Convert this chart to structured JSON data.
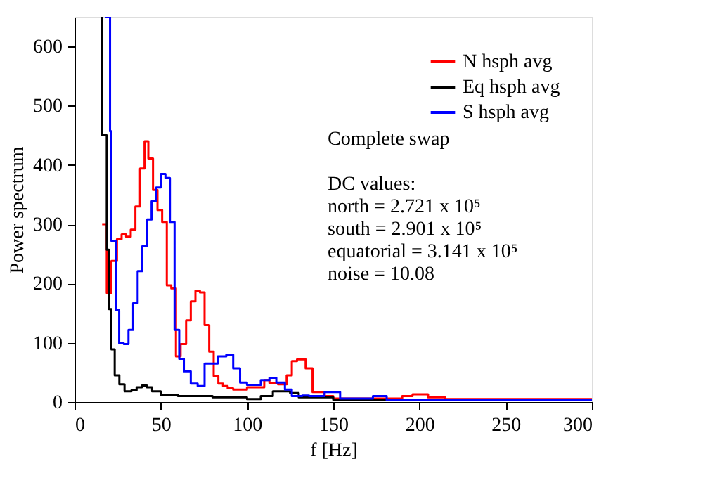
{
  "chart_data": {
    "type": "step",
    "xlabel": "f [Hz]",
    "ylabel": "Power spectrum",
    "xlim": [
      0,
      300
    ],
    "ylim": [
      0,
      650
    ],
    "xticks": [
      0,
      50,
      100,
      150,
      200,
      250,
      300
    ],
    "yticks": [
      0,
      100,
      200,
      300,
      400,
      500,
      600
    ],
    "grid": false,
    "legend": "top right",
    "line_style": "solid",
    "marker": "none",
    "annotations": [
      "Complete swap",
      "DC values:",
      "north = 2.721 x 10⁵",
      "south = 2.901 x 10⁵",
      "equatorial = 3.141 x 10⁵",
      "noise = 10.08"
    ],
    "series": [
      {
        "name": "N hsph avg",
        "color": "#ff0000",
        "x": [
          16.0,
          18.7,
          21.4,
          24.6,
          27.3,
          29.9,
          32.6,
          35.3,
          38.0,
          40.6,
          42.8,
          45.5,
          48.1,
          50.8,
          53.5,
          56.1,
          58.8,
          61.5,
          64.7,
          67.4,
          70.1,
          72.7,
          75.4,
          78.1,
          80.7,
          83.4,
          86.1,
          88.8,
          92,
          100,
          110,
          113,
          118,
          123,
          126,
          129,
          134,
          138,
          145,
          150,
          190,
          196,
          205,
          215,
          300
        ],
        "values": [
          300,
          184,
          238,
          275,
          283,
          279,
          291,
          330,
          394,
          440,
          411,
          358,
          324,
          304,
          197,
          192,
          77,
          98,
          138,
          170,
          188,
          185,
          130,
          85,
          44,
          31,
          27,
          23,
          21,
          25,
          37,
          32,
          30,
          45,
          69,
          72,
          57,
          17,
          10,
          6,
          10,
          13,
          8,
          5,
          5
        ]
      },
      {
        "name": "Eq hsph avg",
        "color": "#000000",
        "x": [
          15.2,
          16.0,
          18.7,
          20.0,
          21.4,
          23.3,
          26,
          29,
          33,
          36,
          39,
          42,
          45,
          50,
          60,
          70,
          80,
          100,
          108,
          115,
          125,
          130,
          150,
          300
        ],
        "values": [
          650,
          450,
          257,
          157,
          89,
          45,
          30,
          18,
          20,
          25,
          28,
          25,
          18,
          12,
          10,
          10,
          8,
          5,
          10,
          18,
          15,
          8,
          4,
          4
        ]
      },
      {
        "name": "S hsph avg",
        "color": "#0000ff",
        "x": [
          17.9,
          20.6,
          21.4,
          24.1,
          25.9,
          28.6,
          31.3,
          34.0,
          36.6,
          39.3,
          42.0,
          44.7,
          47.3,
          50.0,
          52.7,
          55.3,
          58.0,
          60.7,
          63.4,
          67.4,
          71.4,
          75.4,
          78.1,
          83,
          88,
          92,
          96,
          100,
          108,
          113,
          117,
          122,
          126,
          132,
          136,
          145,
          154,
          173,
          181,
          300
        ],
        "values": [
          650,
          457,
          272,
          155,
          99,
          98,
          122,
          167,
          221,
          263,
          308,
          339,
          362,
          385,
          378,
          304,
          122,
          73,
          52,
          31,
          27,
          65,
          65,
          77,
          80,
          57,
          33,
          29,
          37,
          41,
          33,
          21,
          10,
          11,
          10,
          17,
          6,
          10,
          3,
          3
        ]
      }
    ]
  }
}
